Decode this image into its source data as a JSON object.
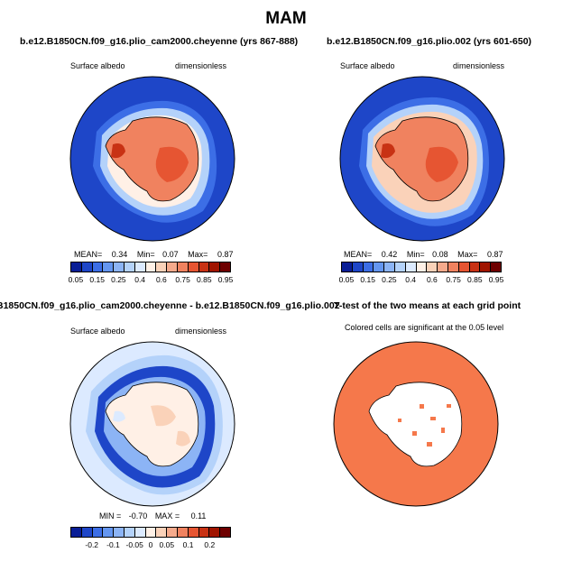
{
  "season": "MAM",
  "panels": [
    {
      "title": "b.e12.B1850CN.f09_g16.plio_cam2000.cheyenne (yrs 867-888)",
      "left_label": "Surface albedo",
      "right_label": "dimensionless",
      "stats": {
        "mean_label": "MEAN=",
        "mean": "0.34",
        "min_label": "Min=",
        "min": "0.07",
        "max_label": "Max=",
        "max": "0.87"
      }
    },
    {
      "title": "b.e12.B1850CN.f09_g16.plio.002 (yrs 601-650)",
      "left_label": "Surface albedo",
      "right_label": "dimensionless",
      "stats": {
        "mean_label": "MEAN=",
        "mean": "0.42",
        "min_label": "Min=",
        "min": "0.08",
        "max_label": "Max=",
        "max": "0.87"
      }
    },
    {
      "title": "B1850CN.f09_g16.plio_cam2000.cheyenne - b.e12.B1850CN.f09_g16.plio.002",
      "left_label": "Surface albedo",
      "right_label": "dimensionless",
      "stats": {
        "min_label": "MIN =",
        "min": "-0.70",
        "max_label": "MAX =",
        "max": "0.11"
      }
    },
    {
      "title": "T-test of the two means at each grid point",
      "subtitle": "Colored cells are significant at the 0.05 level"
    }
  ],
  "colorbar_abs": {
    "colors": [
      "#0a1e96",
      "#1e46c8",
      "#3c6ee6",
      "#6496f0",
      "#8cb4f5",
      "#b4d2fa",
      "#dceaff",
      "#fff0e6",
      "#fad2b9",
      "#f5aa8c",
      "#f0825f",
      "#e65532",
      "#c83214",
      "#a01400",
      "#6e0000"
    ],
    "ticks": [
      "0.05",
      "0.15",
      "0.25",
      "0.4",
      "0.6",
      "0.75",
      "0.85",
      "0.95"
    ]
  },
  "colorbar_diff": {
    "colors": [
      "#0a1e96",
      "#1e46c8",
      "#3c6ee6",
      "#6496f0",
      "#8cb4f5",
      "#b4d2fa",
      "#dceaff",
      "#fff0e6",
      "#fad2b9",
      "#f5aa8c",
      "#f0825f",
      "#e65532",
      "#c83214",
      "#a01400",
      "#6e0000"
    ],
    "ticks": [
      "-0.2",
      "-0.1",
      "-0.05",
      "0",
      "0.05",
      "0.1",
      "0.2"
    ]
  }
}
